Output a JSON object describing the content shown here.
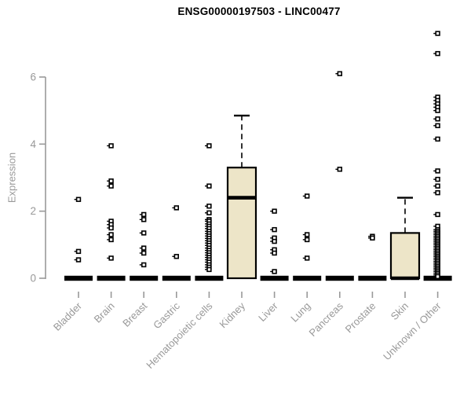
{
  "chart_data": {
    "type": "boxplot",
    "title": "ENSG00000197503 - LINC00477",
    "xlabel": "",
    "ylabel": "Expression",
    "yticks": [
      0,
      2,
      4,
      6
    ],
    "ylim": [
      0,
      7.6
    ],
    "grid": false,
    "legend": null,
    "categories": [
      "Bladder",
      "Brain",
      "Breast",
      "Gastric",
      "Hematopoietic cells",
      "Kidney",
      "Liver",
      "Lung",
      "Pancreas",
      "Prostate",
      "Skin",
      "Unknown / Other"
    ],
    "boxes": [
      {
        "category": "Bladder",
        "q1": 0,
        "median": 0,
        "q3": 0,
        "whisker_low": 0,
        "whisker_high": 0,
        "outliers": [
          2.35,
          0.8,
          0.55
        ]
      },
      {
        "category": "Brain",
        "q1": 0,
        "median": 0,
        "q3": 0,
        "whisker_low": 0,
        "whisker_high": 0,
        "outliers": [
          3.95,
          2.9,
          2.75,
          1.7,
          1.6,
          1.5,
          1.3,
          1.15,
          0.6
        ]
      },
      {
        "category": "Breast",
        "q1": 0,
        "median": 0,
        "q3": 0,
        "whisker_low": 0,
        "whisker_high": 0,
        "outliers": [
          1.9,
          1.75,
          1.35,
          0.9,
          0.75,
          0.4
        ]
      },
      {
        "category": "Gastric",
        "q1": 0,
        "median": 0,
        "q3": 0,
        "whisker_low": 0,
        "whisker_high": 0,
        "outliers": [
          2.1,
          0.65
        ]
      },
      {
        "category": "Hematopoietic cells",
        "q1": 0,
        "median": 0,
        "q3": 0,
        "whisker_low": 0,
        "whisker_high": 0,
        "outliers": [
          3.95,
          2.75,
          2.15,
          1.95,
          1.75,
          1.7,
          1.62,
          1.55,
          1.48,
          1.4,
          1.33,
          1.26,
          1.19,
          1.12,
          1.05,
          0.98,
          0.9,
          0.83,
          0.76,
          0.69,
          0.62,
          0.55,
          0.48,
          0.4,
          0.33,
          0.26
        ]
      },
      {
        "category": "Kidney",
        "q1": 0,
        "median": 2.4,
        "q3": 3.3,
        "whisker_low": 0,
        "whisker_high": 4.85,
        "outliers": []
      },
      {
        "category": "Liver",
        "q1": 0,
        "median": 0,
        "q3": 0,
        "whisker_low": 0,
        "whisker_high": 0,
        "outliers": [
          2.0,
          1.45,
          1.2,
          1.1,
          0.85,
          0.75,
          0.2
        ]
      },
      {
        "category": "Lung",
        "q1": 0,
        "median": 0,
        "q3": 0,
        "whisker_low": 0,
        "whisker_high": 0,
        "outliers": [
          2.45,
          1.3,
          1.15,
          0.6
        ]
      },
      {
        "category": "Pancreas",
        "q1": 0,
        "median": 0,
        "q3": 0,
        "whisker_low": 0,
        "whisker_high": 0,
        "outliers": [
          6.1,
          3.25
        ]
      },
      {
        "category": "Prostate",
        "q1": 0,
        "median": 0,
        "q3": 0,
        "whisker_low": 0,
        "whisker_high": 0,
        "outliers": [
          1.25,
          1.2
        ]
      },
      {
        "category": "Skin",
        "q1": 0,
        "median": 0,
        "q3": 1.35,
        "whisker_low": 0,
        "whisker_high": 2.4,
        "outliers": []
      },
      {
        "category": "Unknown / Other",
        "q1": 0,
        "median": 0,
        "q3": 0,
        "whisker_low": 0,
        "whisker_high": 0,
        "outliers": [
          7.3,
          6.7,
          5.4,
          5.3,
          5.2,
          5.1,
          5.0,
          4.75,
          4.55,
          4.15,
          3.2,
          2.95,
          2.75,
          2.55,
          1.9,
          1.55,
          1.45,
          1.4,
          1.35,
          1.3,
          1.25,
          1.2,
          1.15,
          1.1,
          1.05,
          1.0,
          0.95,
          0.9,
          0.85,
          0.8,
          0.75,
          0.7,
          0.65,
          0.6,
          0.55,
          0.5,
          0.45,
          0.4,
          0.35,
          0.3,
          0.25,
          0.2,
          0.15,
          0.1,
          0.05
        ]
      }
    ],
    "style": {
      "box_fill": "#ede5c8",
      "box_border": "#000000",
      "median_color": "#000000",
      "point_stroke": "#000000",
      "point_fill": "#ffffff",
      "axis_color": "#999999",
      "label_color": "#999999",
      "title_color": "#000000",
      "background": "#ffffff"
    }
  }
}
